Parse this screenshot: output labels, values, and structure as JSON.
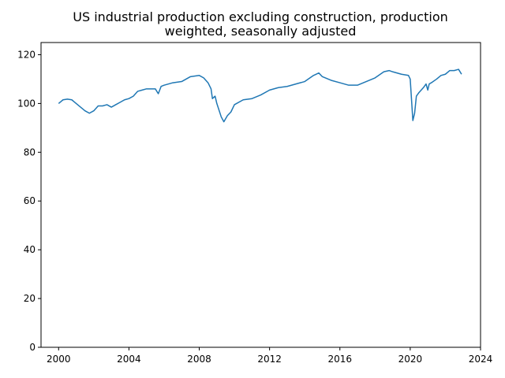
{
  "chart_data": {
    "type": "line",
    "title_lines": [
      "US industrial production excluding construction, production",
      "weighted, seasonally adjusted"
    ],
    "xlabel": "",
    "ylabel": "",
    "xlim": [
      1999.0,
      2024.0
    ],
    "ylim": [
      0,
      125
    ],
    "xticks": [
      2000,
      2004,
      2008,
      2012,
      2016,
      2020,
      2024
    ],
    "yticks": [
      0,
      20,
      40,
      60,
      80,
      100,
      120
    ],
    "grid": false,
    "legend": "none",
    "series": [
      {
        "color": "#1f77b4",
        "x": [
          2000.0,
          2000.25,
          2000.5,
          2000.75,
          2001.0,
          2001.25,
          2001.5,
          2001.75,
          2002.0,
          2002.25,
          2002.5,
          2002.75,
          2003.0,
          2003.25,
          2003.5,
          2003.75,
          2004.0,
          2004.25,
          2004.5,
          2004.75,
          2005.0,
          2005.25,
          2005.5,
          2005.67,
          2005.83,
          2006.0,
          2006.5,
          2007.0,
          2007.5,
          2008.0,
          2008.25,
          2008.5,
          2008.67,
          2008.75,
          2008.9,
          2009.0,
          2009.25,
          2009.4,
          2009.6,
          2009.8,
          2010.0,
          2010.5,
          2011.0,
          2011.5,
          2012.0,
          2012.5,
          2013.0,
          2013.5,
          2014.0,
          2014.5,
          2014.8,
          2015.0,
          2015.5,
          2016.0,
          2016.5,
          2017.0,
          2017.5,
          2018.0,
          2018.5,
          2018.8,
          2019.0,
          2019.5,
          2019.9,
          2020.0,
          2020.15,
          2020.25,
          2020.35,
          2020.5,
          2020.75,
          2020.9,
          2021.0,
          2021.08,
          2021.2,
          2021.5,
          2021.75,
          2022.0,
          2022.25,
          2022.5,
          2022.75,
          2022.92
        ],
        "y": [
          100,
          101.5,
          101.8,
          101.5,
          100,
          98.5,
          97,
          96,
          97,
          99,
          99,
          99.5,
          98.5,
          99.5,
          100.5,
          101.5,
          102,
          103,
          105,
          105.5,
          106,
          106,
          106,
          104,
          107,
          107.5,
          108.5,
          109,
          111,
          111.5,
          110.5,
          108.5,
          106,
          102,
          103,
          100,
          94.5,
          92.5,
          95,
          96.5,
          99.5,
          101.5,
          102,
          103.5,
          105.5,
          106.5,
          107,
          108,
          109,
          111.5,
          112.5,
          111,
          109.5,
          108.5,
          107.5,
          107.5,
          109,
          110.5,
          113,
          113.5,
          113,
          112,
          111.5,
          110,
          93,
          96,
          103,
          104.5,
          106.5,
          108,
          105.5,
          108,
          108.5,
          110,
          111.5,
          112,
          113.5,
          113.5,
          114,
          112
        ]
      }
    ]
  }
}
